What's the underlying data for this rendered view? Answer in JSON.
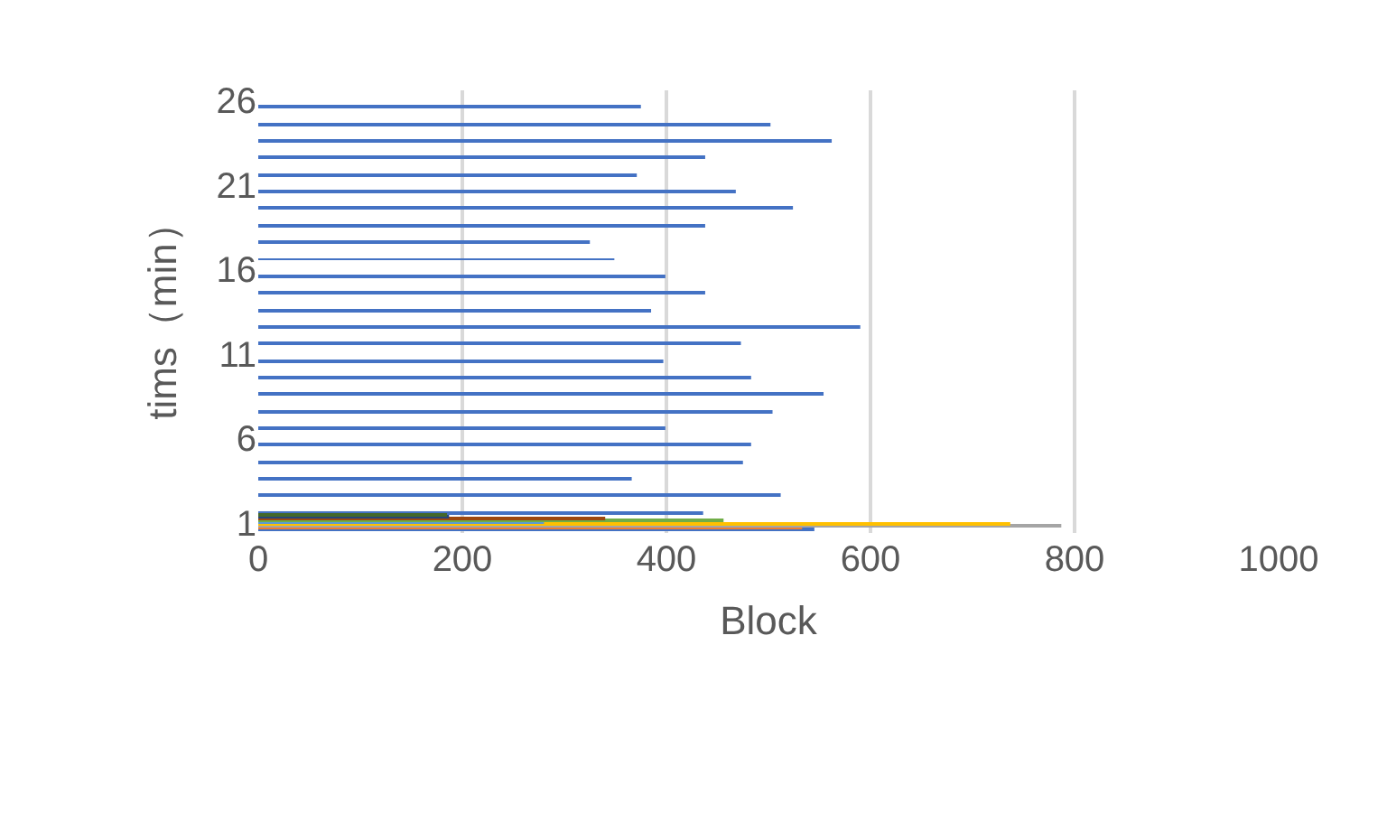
{
  "chart_data": {
    "type": "bar",
    "orientation": "horizontal",
    "xlabel": "Block",
    "ylabel": "tims（min）",
    "categories": [
      "26",
      null,
      null,
      null,
      null,
      "21",
      null,
      null,
      null,
      null,
      "16",
      null,
      null,
      null,
      null,
      "11",
      null,
      null,
      null,
      null,
      "6",
      null,
      null,
      null,
      null,
      "1"
    ],
    "series": [
      {
        "color": "#4472c4",
        "values": [
          375,
          502,
          562,
          438,
          371,
          468,
          524,
          438,
          325,
          349,
          399,
          438,
          385,
          590,
          473,
          397,
          483,
          554,
          504,
          399,
          483,
          475,
          366,
          512,
          436,
          545
        ]
      },
      {
        "color": "#ed7d31",
        "values": [
          null,
          null,
          null,
          null,
          null,
          null,
          null,
          null,
          null,
          null,
          null,
          null,
          null,
          null,
          null,
          null,
          null,
          null,
          null,
          null,
          null,
          null,
          null,
          null,
          null,
          533
        ]
      },
      {
        "color": "#a5a5a5",
        "values": [
          null,
          null,
          null,
          null,
          null,
          null,
          null,
          null,
          null,
          null,
          null,
          null,
          null,
          null,
          null,
          null,
          null,
          null,
          null,
          null,
          null,
          null,
          null,
          null,
          null,
          787
        ]
      },
      {
        "color": "#ffc000",
        "values": [
          null,
          null,
          null,
          null,
          null,
          null,
          null,
          null,
          null,
          null,
          null,
          null,
          null,
          null,
          null,
          null,
          null,
          null,
          null,
          null,
          null,
          null,
          null,
          null,
          null,
          737
        ]
      },
      {
        "color": "#5b9bd5",
        "values": [
          null,
          null,
          null,
          null,
          null,
          null,
          null,
          null,
          null,
          null,
          null,
          null,
          null,
          null,
          null,
          null,
          null,
          null,
          null,
          null,
          null,
          null,
          null,
          null,
          null,
          280
        ]
      },
      {
        "color": "#70ad47",
        "values": [
          null,
          null,
          null,
          null,
          null,
          null,
          null,
          null,
          null,
          null,
          null,
          null,
          null,
          null,
          null,
          null,
          null,
          null,
          null,
          null,
          null,
          null,
          null,
          null,
          null,
          456
        ]
      },
      {
        "color": "#9e480e",
        "values": [
          null,
          null,
          null,
          null,
          null,
          null,
          null,
          null,
          null,
          null,
          null,
          null,
          null,
          null,
          null,
          null,
          null,
          null,
          null,
          null,
          null,
          null,
          null,
          null,
          null,
          340
        ]
      },
      {
        "color": "#264478",
        "values": [
          null,
          null,
          null,
          null,
          null,
          null,
          null,
          null,
          null,
          null,
          null,
          null,
          null,
          null,
          null,
          null,
          null,
          null,
          null,
          null,
          null,
          null,
          null,
          null,
          null,
          187
        ]
      },
      {
        "color": "#43682b",
        "values": [
          null,
          null,
          null,
          null,
          null,
          null,
          null,
          null,
          null,
          null,
          null,
          null,
          null,
          null,
          null,
          null,
          null,
          null,
          null,
          null,
          null,
          null,
          null,
          null,
          null,
          185
        ]
      }
    ],
    "xlim": [
      0,
      1000
    ],
    "xticks": [
      0,
      200,
      400,
      600,
      800,
      1000
    ],
    "grid": "x"
  }
}
